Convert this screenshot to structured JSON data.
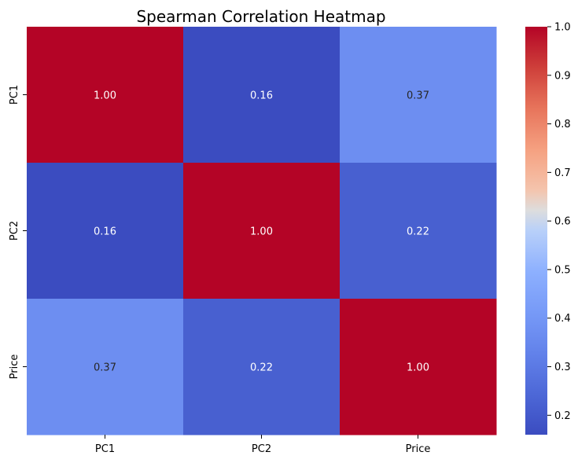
{
  "chart_data": {
    "type": "heatmap",
    "title": "Spearman Correlation Heatmap",
    "xlabel": "",
    "ylabel": "",
    "x_categories": [
      "PC1",
      "PC2",
      "Price"
    ],
    "y_categories": [
      "PC1",
      "PC2",
      "Price"
    ],
    "values": [
      [
        1.0,
        0.16,
        0.37
      ],
      [
        0.16,
        1.0,
        0.22
      ],
      [
        0.37,
        0.22,
        1.0
      ]
    ],
    "annotations": [
      [
        "1.00",
        "0.16",
        "0.37"
      ],
      [
        "0.16",
        "1.00",
        "0.22"
      ],
      [
        "0.37",
        "0.22",
        "1.00"
      ]
    ],
    "colormap": "coolwarm",
    "colorbar": {
      "range": [
        0.16,
        1.0
      ],
      "ticks": [
        0.2,
        0.3,
        0.4,
        0.5,
        0.6,
        0.7,
        0.8,
        0.9,
        1.0
      ],
      "tick_labels": [
        "0.2",
        "0.3",
        "0.4",
        "0.5",
        "0.6",
        "0.7",
        "0.8",
        "0.9",
        "1.0"
      ]
    },
    "grid": false,
    "legend": "none"
  }
}
